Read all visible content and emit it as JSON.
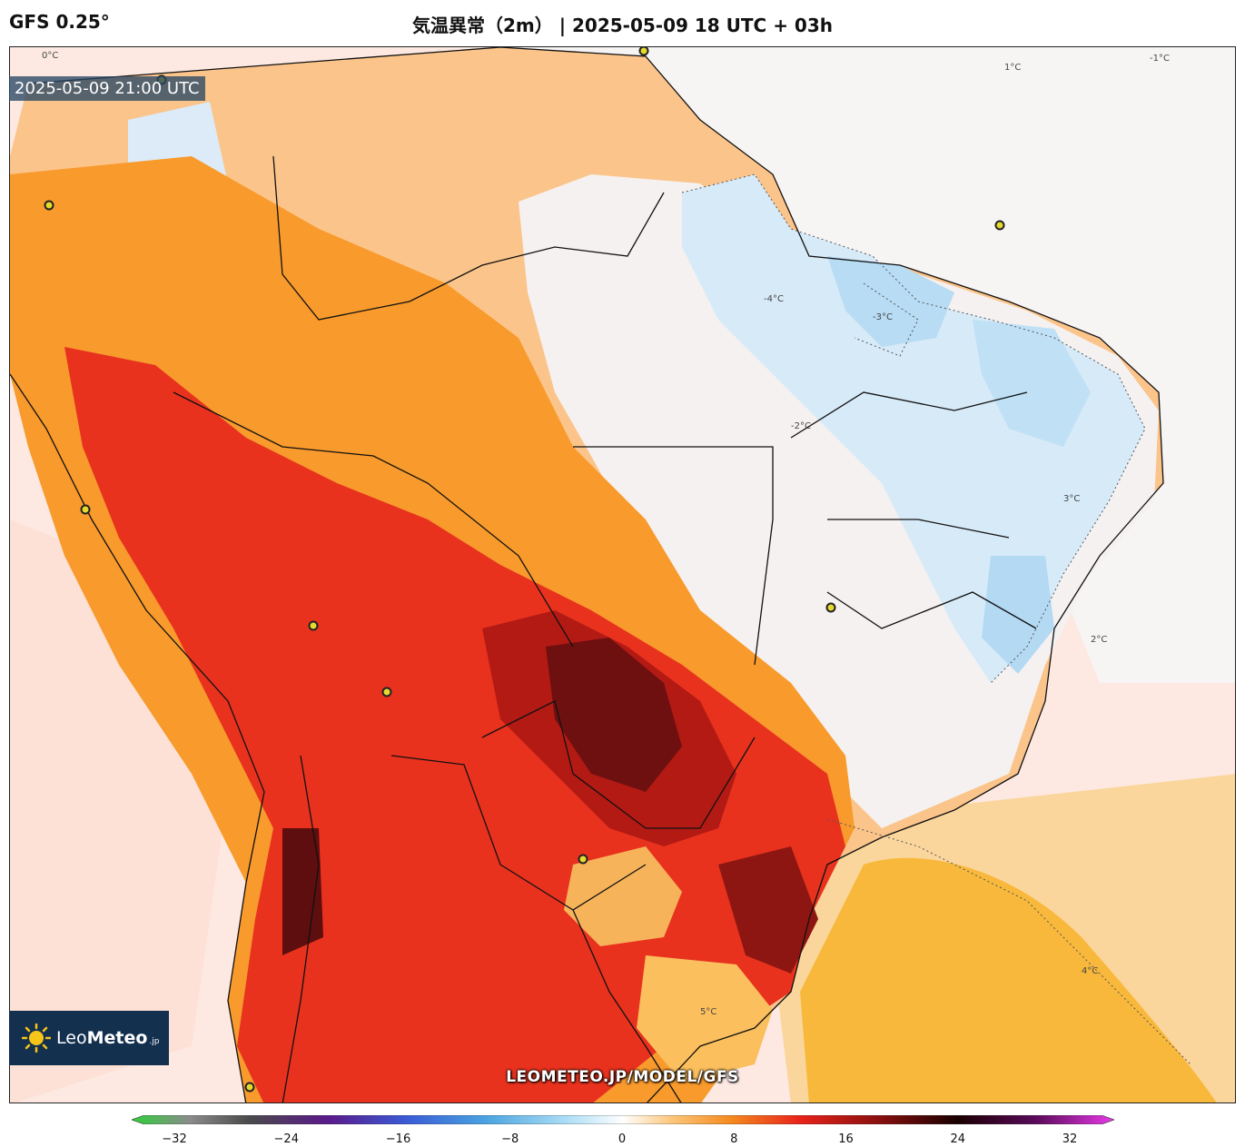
{
  "header": {
    "model": "GFS 0.25°",
    "title": "気温異常（2m） | 2025-05-09 18 UTC + 03h"
  },
  "map": {
    "valid_time": "2025-05-09 21:00 UTC",
    "watermark": "LEOMETEO.JP/MODEL/GFS",
    "contour_labels": [
      "0°C",
      "-1°C",
      "1°C",
      "2°C",
      "-2°C",
      "3°C",
      "-3°C",
      "4°C",
      "-4°C",
      "5°C"
    ],
    "colors": {
      "ocean_warm": "#fde9e2",
      "ocean_cool": "#eef4fb",
      "strong_red": "#e8231a",
      "dark_red": "#7a0f0f",
      "orange": "#f7961e",
      "light_orange": "#fcc47a",
      "yellow_orange": "#f7b93a",
      "light_blue": "#cfe6f7",
      "blue": "#a9d6f2"
    }
  },
  "logo": {
    "name_light": "Leo",
    "name_bold": "Meteo",
    "suffix": ".jp"
  },
  "colorbar": {
    "ticks": [
      "−32",
      "−24",
      "−16",
      "−8",
      "0",
      "8",
      "16",
      "24",
      "32"
    ],
    "min": -34,
    "max": 34
  }
}
